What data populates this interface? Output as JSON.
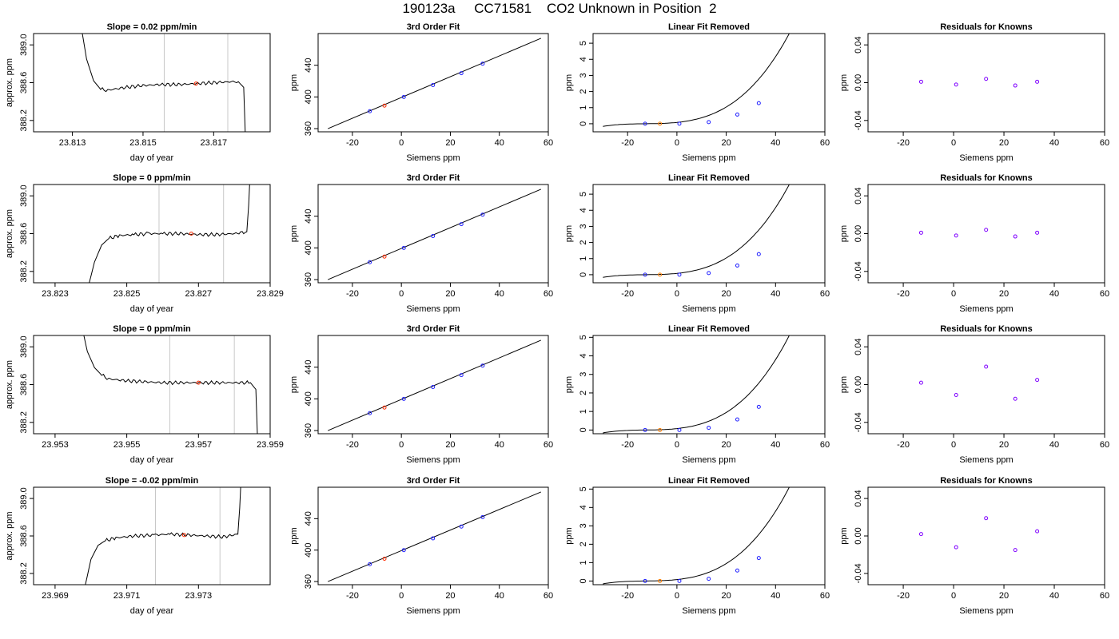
{
  "page_title": "190123a     CC71581    CO2 Unknown in Position  2",
  "colors": {
    "trace": "#000000",
    "window_line": "#c8c8c8",
    "known_point": "#1f1fff",
    "unknown_point": "#ff2a00",
    "unknown_point_linear": "#ff7f00",
    "residual_point": "#7f00ff"
  },
  "chart_data": [
    {
      "type": "line",
      "title": "Slope =  0.02  ppm/min",
      "xlabel": "day of year",
      "ylabel": "approx. ppm",
      "xlim": [
        23.8119,
        23.8186
      ],
      "ylim": [
        388.08,
        389.12
      ],
      "xticks": [
        23.813,
        23.815,
        23.817
      ],
      "xticklabels": [
        "23.813",
        "23.815",
        "23.817"
      ],
      "yticks": [
        388.2,
        388.6,
        389.0
      ],
      "yticklabels": [
        "388.2",
        "388.6",
        "389.0"
      ],
      "window": [
        23.8156,
        23.8174
      ],
      "trace": [
        [
          23.8132,
          389.3
        ],
        [
          23.8134,
          388.85
        ],
        [
          23.8136,
          388.62
        ],
        [
          23.8138,
          388.53
        ],
        [
          23.814,
          388.52
        ],
        [
          23.8145,
          388.55
        ],
        [
          23.815,
          388.57
        ],
        [
          23.8155,
          388.58
        ],
        [
          23.816,
          388.58
        ],
        [
          23.8165,
          388.59
        ],
        [
          23.817,
          388.6
        ],
        [
          23.8175,
          388.61
        ],
        [
          23.8177,
          388.61
        ],
        [
          23.81785,
          388.55
        ],
        [
          23.8179,
          388.0
        ]
      ],
      "point": [
        23.8165,
        388.59
      ]
    },
    {
      "type": "scatter",
      "title": "3rd Order Fit",
      "xlabel": "Siemens ppm",
      "ylabel": "ppm",
      "xlim": [
        -34,
        60
      ],
      "ylim": [
        356,
        480
      ],
      "xticks": [
        -20,
        0,
        20,
        40,
        60
      ],
      "xticklabels": [
        "-20",
        "0",
        "20",
        "40",
        "60"
      ],
      "yticks": [
        360,
        400,
        440
      ],
      "yticklabels": [
        "360",
        "400",
        "440"
      ],
      "fit_line": [
        [
          -30,
          360
        ],
        [
          57,
          474
        ]
      ],
      "knowns": [
        [
          -12.9,
          382
        ],
        [
          1.0,
          400
        ],
        [
          12.9,
          415
        ],
        [
          24.5,
          430
        ],
        [
          33.2,
          442
        ]
      ],
      "unknown": [
        -6.9,
        389
      ]
    },
    {
      "type": "scatter",
      "title": "Linear Fit Removed",
      "xlabel": "Siemens ppm",
      "ylabel": "ppm",
      "xlim": [
        -34,
        60
      ],
      "ylim": [
        -0.5,
        5.6
      ],
      "xticks": [
        -20,
        0,
        20,
        40,
        60
      ],
      "xticklabels": [
        "-20",
        "0",
        "20",
        "40",
        "60"
      ],
      "yticks": [
        0,
        1,
        2,
        3,
        4,
        5
      ],
      "yticklabels": [
        "0",
        "1",
        "2",
        "3",
        "4",
        "5"
      ],
      "curve": {
        "a": 2.75e-05,
        "b": 0.00175,
        "x0": -12.9,
        "from": -30,
        "to": 57
      },
      "knowns": [
        [
          -12.9,
          0.0
        ],
        [
          1.0,
          0.0
        ],
        [
          12.9,
          0.1
        ],
        [
          24.5,
          0.57
        ],
        [
          33.2,
          1.28
        ]
      ],
      "unknown": [
        -6.9,
        0.0
      ]
    },
    {
      "type": "scatter",
      "title": "Residuals for Knowns",
      "xlabel": "Siemens ppm",
      "ylabel": "ppm",
      "xlim": [
        -34,
        60
      ],
      "ylim": [
        -0.052,
        0.052
      ],
      "xticks": [
        -20,
        0,
        20,
        40,
        60
      ],
      "xticklabels": [
        "-20",
        "0",
        "20",
        "40",
        "60"
      ],
      "yticks": [
        -0.04,
        0.0,
        0.04
      ],
      "yticklabels": [
        "-0.04",
        "0.00",
        "0.04"
      ],
      "points": [
        [
          -12.9,
          0.001
        ],
        [
          1.0,
          -0.002
        ],
        [
          12.9,
          0.004
        ],
        [
          24.5,
          -0.003
        ],
        [
          33.2,
          0.001
        ]
      ]
    },
    {
      "type": "line",
      "title": "Slope =  0  ppm/min",
      "xlabel": "day of year",
      "ylabel": "approx. ppm",
      "xlim": [
        23.8224,
        23.829
      ],
      "ylim": [
        388.08,
        389.12
      ],
      "xticks": [
        23.823,
        23.825,
        23.827,
        23.829
      ],
      "xticklabels": [
        "23.823",
        "23.825",
        "23.827",
        "23.829"
      ],
      "yticks": [
        388.2,
        388.6,
        389.0
      ],
      "yticklabels": [
        "388.2",
        "388.6",
        "389.0"
      ],
      "window": [
        23.8259,
        23.8277
      ],
      "trace": [
        [
          23.8239,
          388.0
        ],
        [
          23.8241,
          388.3
        ],
        [
          23.8243,
          388.48
        ],
        [
          23.8245,
          388.55
        ],
        [
          23.8248,
          388.58
        ],
        [
          23.8252,
          388.59
        ],
        [
          23.8256,
          388.6
        ],
        [
          23.826,
          388.6
        ],
        [
          23.8265,
          388.6
        ],
        [
          23.827,
          388.59
        ],
        [
          23.8275,
          388.59
        ],
        [
          23.828,
          388.6
        ],
        [
          23.82835,
          388.62
        ],
        [
          23.8284,
          388.9
        ],
        [
          23.82845,
          389.3
        ]
      ],
      "point": [
        23.8268,
        388.6
      ]
    },
    {
      "type": "scatter",
      "title": "3rd Order Fit",
      "xlabel": "Siemens ppm",
      "ylabel": "ppm",
      "xlim": [
        -34,
        60
      ],
      "ylim": [
        356,
        480
      ],
      "xticks": [
        -20,
        0,
        20,
        40,
        60
      ],
      "xticklabels": [
        "-20",
        "0",
        "20",
        "40",
        "60"
      ],
      "yticks": [
        360,
        400,
        440
      ],
      "yticklabels": [
        "360",
        "400",
        "440"
      ],
      "fit_line": [
        [
          -30,
          360
        ],
        [
          57,
          474
        ]
      ],
      "knowns": [
        [
          -12.9,
          382
        ],
        [
          1.0,
          400
        ],
        [
          12.9,
          415
        ],
        [
          24.5,
          430
        ],
        [
          33.2,
          442
        ]
      ],
      "unknown": [
        -6.9,
        389
      ]
    },
    {
      "type": "scatter",
      "title": "Linear Fit Removed",
      "xlabel": "Siemens ppm",
      "ylabel": "ppm",
      "xlim": [
        -34,
        60
      ],
      "ylim": [
        -0.5,
        5.6
      ],
      "xticks": [
        -20,
        0,
        20,
        40,
        60
      ],
      "xticklabels": [
        "-20",
        "0",
        "20",
        "40",
        "60"
      ],
      "yticks": [
        0,
        1,
        2,
        3,
        4,
        5
      ],
      "yticklabels": [
        "0",
        "1",
        "2",
        "3",
        "4",
        "5"
      ],
      "curve": {
        "a": 2.75e-05,
        "b": 0.00175,
        "x0": -12.9,
        "from": -30,
        "to": 57
      },
      "knowns": [
        [
          -12.9,
          0.0
        ],
        [
          1.0,
          0.0
        ],
        [
          12.9,
          0.1
        ],
        [
          24.5,
          0.57
        ],
        [
          33.2,
          1.28
        ]
      ],
      "unknown": [
        -6.9,
        0.0
      ]
    },
    {
      "type": "scatter",
      "title": "Residuals for Knowns",
      "xlabel": "Siemens ppm",
      "ylabel": "ppm",
      "xlim": [
        -34,
        60
      ],
      "ylim": [
        -0.052,
        0.052
      ],
      "xticks": [
        -20,
        0,
        20,
        40,
        60
      ],
      "xticklabels": [
        "-20",
        "0",
        "20",
        "40",
        "60"
      ],
      "yticks": [
        -0.04,
        0.0,
        0.04
      ],
      "yticklabels": [
        "-0.04",
        "0.00",
        "0.04"
      ],
      "points": [
        [
          -12.9,
          0.001
        ],
        [
          1.0,
          -0.002
        ],
        [
          12.9,
          0.004
        ],
        [
          24.5,
          -0.003
        ],
        [
          33.2,
          0.001
        ]
      ]
    },
    {
      "type": "line",
      "title": "Slope =  0  ppm/min",
      "xlabel": "day of year",
      "ylabel": "approx. ppm",
      "xlim": [
        23.9524,
        23.959
      ],
      "ylim": [
        388.08,
        389.12
      ],
      "xticks": [
        23.953,
        23.955,
        23.957,
        23.959
      ],
      "xticklabels": [
        "23.953",
        "23.955",
        "23.957",
        "23.959"
      ],
      "yticks": [
        388.2,
        388.6,
        389.0
      ],
      "yticklabels": [
        "388.2",
        "388.6",
        "389.0"
      ],
      "window": [
        23.9562,
        23.958
      ],
      "trace": [
        [
          23.9537,
          389.3
        ],
        [
          23.9539,
          388.95
        ],
        [
          23.9541,
          388.78
        ],
        [
          23.9543,
          388.7
        ],
        [
          23.9545,
          388.66
        ],
        [
          23.955,
          388.64
        ],
        [
          23.9555,
          388.63
        ],
        [
          23.956,
          388.62
        ],
        [
          23.9565,
          388.62
        ],
        [
          23.957,
          388.62
        ],
        [
          23.9575,
          388.62
        ],
        [
          23.958,
          388.62
        ],
        [
          23.95845,
          388.62
        ],
        [
          23.9586,
          388.55
        ],
        [
          23.95865,
          388.0
        ]
      ],
      "point": [
        23.957,
        388.62
      ]
    },
    {
      "type": "scatter",
      "title": "3rd Order Fit",
      "xlabel": "Siemens ppm",
      "ylabel": "ppm",
      "xlim": [
        -34,
        60
      ],
      "ylim": [
        356,
        480
      ],
      "xticks": [
        -20,
        0,
        20,
        40,
        60
      ],
      "xticklabels": [
        "-20",
        "0",
        "20",
        "40",
        "60"
      ],
      "yticks": [
        360,
        400,
        440
      ],
      "yticklabels": [
        "360",
        "400",
        "440"
      ],
      "fit_line": [
        [
          -30,
          360
        ],
        [
          57,
          474
        ]
      ],
      "knowns": [
        [
          -12.9,
          382
        ],
        [
          1.0,
          400
        ],
        [
          12.9,
          415
        ],
        [
          24.5,
          430
        ],
        [
          33.2,
          442
        ]
      ],
      "unknown": [
        -6.9,
        389
      ]
    },
    {
      "type": "scatter",
      "title": "Linear Fit Removed",
      "xlabel": "Siemens ppm",
      "ylabel": "ppm",
      "xlim": [
        -34,
        60
      ],
      "ylim": [
        -0.2,
        5.1
      ],
      "xticks": [
        -20,
        0,
        20,
        40,
        60
      ],
      "xticklabels": [
        "-20",
        "0",
        "20",
        "40",
        "60"
      ],
      "yticks": [
        0,
        1,
        2,
        3,
        4,
        5
      ],
      "yticklabels": [
        "0",
        "1",
        "2",
        "3",
        "4",
        "5"
      ],
      "curve": {
        "a": 2.5e-05,
        "b": 0.00175,
        "x0": -12.9,
        "from": -30,
        "to": 57
      },
      "knowns": [
        [
          -12.9,
          0.0
        ],
        [
          1.0,
          0.0
        ],
        [
          12.9,
          0.12
        ],
        [
          24.5,
          0.57
        ],
        [
          33.2,
          1.25
        ]
      ],
      "unknown": [
        -6.9,
        0.0
      ]
    },
    {
      "type": "scatter",
      "title": "Residuals for Knowns",
      "xlabel": "Siemens ppm",
      "ylabel": "ppm",
      "xlim": [
        -34,
        60
      ],
      "ylim": [
        -0.052,
        0.052
      ],
      "xticks": [
        -20,
        0,
        20,
        40,
        60
      ],
      "xticklabels": [
        "-20",
        "0",
        "20",
        "40",
        "60"
      ],
      "yticks": [
        -0.04,
        0.0,
        0.04
      ],
      "yticklabels": [
        "-0.04",
        "0.00",
        "0.04"
      ],
      "points": [
        [
          -12.9,
          0.002
        ],
        [
          1.0,
          -0.011
        ],
        [
          12.9,
          0.019
        ],
        [
          24.5,
          -0.015
        ],
        [
          33.2,
          0.005
        ]
      ]
    },
    {
      "type": "line",
      "title": "Slope =  -0.02  ppm/min",
      "xlabel": "day of year",
      "ylabel": "approx. ppm",
      "xlim": [
        23.9684,
        23.975
      ],
      "ylim": [
        388.08,
        389.12
      ],
      "xticks": [
        23.969,
        23.971,
        23.973
      ],
      "xticklabels": [
        "23.969",
        "23.971",
        "23.973"
      ],
      "yticks": [
        388.2,
        388.6,
        389.0
      ],
      "yticklabels": [
        "388.2",
        "388.6",
        "389.0"
      ],
      "window": [
        23.9718,
        23.9736
      ],
      "trace": [
        [
          23.9698,
          388.0
        ],
        [
          23.97,
          388.35
        ],
        [
          23.9702,
          388.5
        ],
        [
          23.9704,
          388.55
        ],
        [
          23.9707,
          388.58
        ],
        [
          23.9712,
          388.6
        ],
        [
          23.9718,
          388.61
        ],
        [
          23.9722,
          388.62
        ],
        [
          23.9727,
          388.61
        ],
        [
          23.9732,
          388.6
        ],
        [
          23.9737,
          388.59
        ],
        [
          23.9741,
          388.62
        ],
        [
          23.97415,
          388.9
        ],
        [
          23.9742,
          389.3
        ]
      ],
      "point": [
        23.9726,
        388.61
      ]
    },
    {
      "type": "scatter",
      "title": "3rd Order Fit",
      "xlabel": "Siemens ppm",
      "ylabel": "ppm",
      "xlim": [
        -34,
        60
      ],
      "ylim": [
        356,
        480
      ],
      "xticks": [
        -20,
        0,
        20,
        40,
        60
      ],
      "xticklabels": [
        "-20",
        "0",
        "20",
        "40",
        "60"
      ],
      "yticks": [
        360,
        400,
        440
      ],
      "yticklabels": [
        "360",
        "400",
        "440"
      ],
      "fit_line": [
        [
          -30,
          360
        ],
        [
          57,
          474
        ]
      ],
      "knowns": [
        [
          -12.9,
          382
        ],
        [
          1.0,
          400
        ],
        [
          12.9,
          415
        ],
        [
          24.5,
          430
        ],
        [
          33.2,
          442
        ]
      ],
      "unknown": [
        -6.9,
        389
      ]
    },
    {
      "type": "scatter",
      "title": "Linear Fit Removed",
      "xlabel": "Siemens ppm",
      "ylabel": "ppm",
      "xlim": [
        -34,
        60
      ],
      "ylim": [
        -0.2,
        5.1
      ],
      "xticks": [
        -20,
        0,
        20,
        40,
        60
      ],
      "xticklabels": [
        "-20",
        "0",
        "20",
        "40",
        "60"
      ],
      "yticks": [
        0,
        1,
        2,
        3,
        4,
        5
      ],
      "yticklabels": [
        "0",
        "1",
        "2",
        "3",
        "4",
        "5"
      ],
      "curve": {
        "a": 2.5e-05,
        "b": 0.00175,
        "x0": -12.9,
        "from": -30,
        "to": 57
      },
      "knowns": [
        [
          -12.9,
          0.0
        ],
        [
          1.0,
          0.0
        ],
        [
          12.9,
          0.12
        ],
        [
          24.5,
          0.57
        ],
        [
          33.2,
          1.25
        ]
      ],
      "unknown": [
        -6.9,
        0.0
      ]
    },
    {
      "type": "scatter",
      "title": "Residuals for Knowns",
      "xlabel": "Siemens ppm",
      "ylabel": "ppm",
      "xlim": [
        -34,
        60
      ],
      "ylim": [
        -0.052,
        0.052
      ],
      "xticks": [
        -20,
        0,
        20,
        40,
        60
      ],
      "xticklabels": [
        "-20",
        "0",
        "20",
        "40",
        "60"
      ],
      "yticks": [
        -0.04,
        0.0,
        0.04
      ],
      "yticklabels": [
        "-0.04",
        "0.00",
        "0.04"
      ],
      "points": [
        [
          -12.9,
          0.002
        ],
        [
          1.0,
          -0.012
        ],
        [
          12.9,
          0.019
        ],
        [
          24.5,
          -0.015
        ],
        [
          33.2,
          0.005
        ]
      ]
    }
  ]
}
